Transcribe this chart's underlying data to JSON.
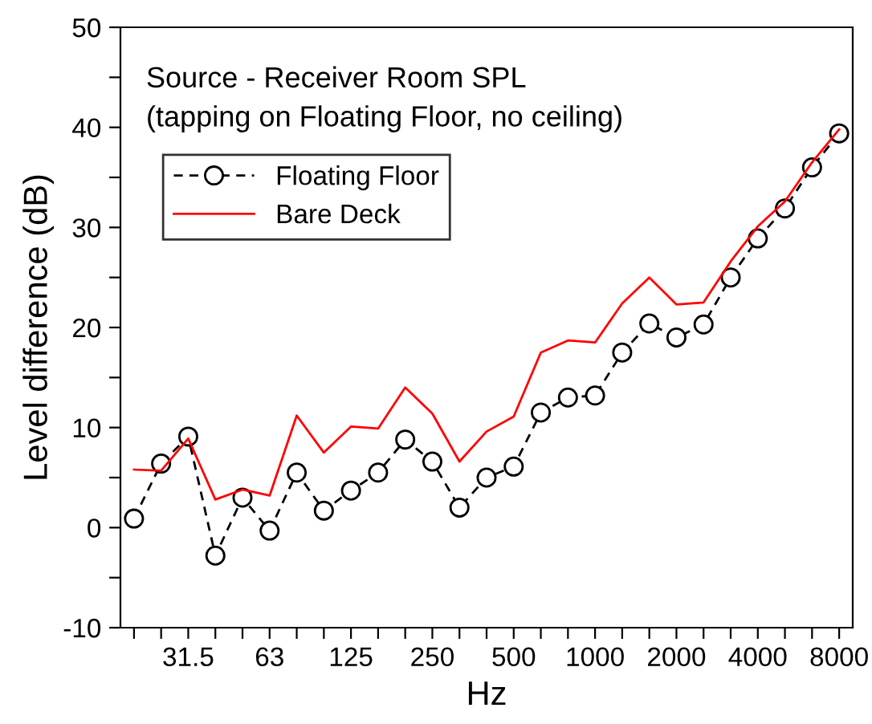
{
  "chart_data": {
    "type": "line",
    "annotations": [
      "Source - Receiver Room SPL",
      "(tapping on Floating Floor, no ceiling)"
    ],
    "xlabel": "Hz",
    "ylabel": "Level difference (dB)",
    "categories": [
      null,
      null,
      "31.5",
      null,
      null,
      "63",
      null,
      null,
      "125",
      null,
      null,
      "250",
      null,
      null,
      "500",
      null,
      null,
      "1000",
      null,
      null,
      "2000",
      null,
      null,
      "4000",
      null,
      null,
      "8000"
    ],
    "series": [
      {
        "name": "Floating Floor",
        "color": "#000000",
        "marker": "circle",
        "line_style": "dashed",
        "values": [
          0.9,
          6.4,
          9.1,
          -2.8,
          3.0,
          -0.3,
          5.5,
          1.7,
          3.7,
          5.5,
          8.8,
          6.6,
          2.0,
          5.0,
          6.1,
          11.5,
          13.0,
          13.2,
          17.5,
          20.4,
          19.0,
          20.3,
          25.0,
          28.9,
          31.9,
          36.0,
          39.4
        ]
      },
      {
        "name": "Bare Deck",
        "color": "#ff0000",
        "marker": "none",
        "line_style": "solid",
        "values": [
          5.8,
          5.7,
          8.9,
          2.8,
          3.8,
          3.2,
          11.2,
          7.5,
          10.1,
          9.9,
          14.0,
          11.4,
          6.6,
          9.6,
          11.1,
          17.5,
          18.7,
          18.5,
          22.4,
          25.0,
          22.3,
          22.5,
          26.6,
          30.1,
          32.6,
          36.5,
          39.8
        ]
      }
    ],
    "ylim": [
      -10,
      50
    ],
    "yticks": [
      -10,
      {
        "value": -5,
        "label": null
      },
      0,
      {
        "value": 5,
        "label": null
      },
      10,
      {
        "value": 15,
        "label": null
      },
      20,
      {
        "value": 25,
        "label": null
      },
      30,
      {
        "value": 35,
        "label": null
      },
      40,
      {
        "value": 45,
        "label": null
      },
      50
    ],
    "grid": false,
    "legend": "top left"
  }
}
